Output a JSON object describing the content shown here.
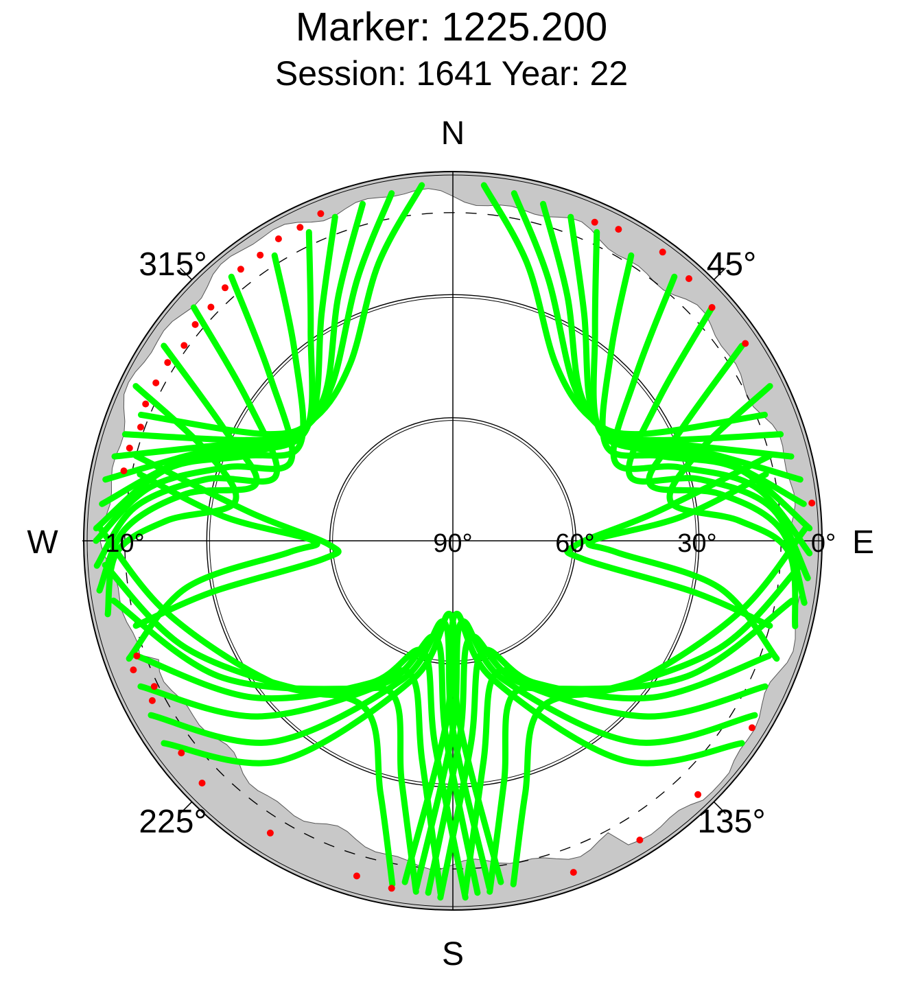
{
  "title": "Marker: 1225.200",
  "subtitle": "Session: 1641 Year: 22",
  "chart_data": {
    "type": "scatter",
    "projection": "polar skyplot (azimuth / elevation)",
    "cardinal_labels": {
      "north": "N",
      "east": "E",
      "south": "S",
      "west": "W"
    },
    "azimuth_labels": [
      "45°",
      "135°",
      "225°",
      "315°"
    ],
    "elevation_labels": [
      "0°",
      "30°",
      "60°",
      "90°",
      "10°"
    ],
    "elevation_rings": [
      0,
      30,
      60
    ],
    "elevation_mask_dashed": 10,
    "obstruction_mask": "grey band near horizon",
    "colors": {
      "tracks": "#00ff00",
      "low_elevation_points": "#ff0000",
      "mask": "#c8c8c8",
      "axes": "#000000"
    },
    "series": [
      {
        "name": "satellite tracks",
        "color": "#00ff00",
        "tracks": [
          {
            "az": [
              355,
              345,
              330,
              312,
              300,
              292
            ],
            "el": [
              3,
              20,
              40,
              45,
              38,
              8
            ]
          },
          {
            "az": [
              350,
              340,
              322,
              305,
              296,
              288
            ],
            "el": [
              4,
              22,
              42,
              44,
              34,
              6
            ]
          },
          {
            "az": [
              345,
              335,
              318,
              300,
              293,
              284
            ],
            "el": [
              5,
              24,
              43,
              42,
              30,
              5
            ]
          },
          {
            "az": [
              340,
              330,
              312,
              298,
              290,
              280
            ],
            "el": [
              6,
              26,
              44,
              40,
              26,
              4
            ]
          },
          {
            "az": [
              335,
              326,
              308,
              295,
              287,
              276
            ],
            "el": [
              7,
              28,
              45,
              38,
              22,
              4
            ]
          },
          {
            "az": [
              328,
              320,
              302,
              292,
              284,
              272
            ],
            "el": [
              8,
              30,
              46,
              35,
              18,
              3
            ]
          },
          {
            "az": [
              320,
              312,
              296,
              288,
              280,
              270
            ],
            "el": [
              6,
              30,
              46,
              32,
              15,
              3
            ]
          },
          {
            "az": [
              312,
              304,
              290,
              284,
              276,
              266
            ],
            "el": [
              5,
              30,
              44,
              28,
              12,
              3
            ]
          },
          {
            "az": [
              304,
              296,
              286,
              280,
              272,
              262
            ],
            "el": [
              5,
              28,
              40,
              24,
              10,
              3
            ]
          },
          {
            "az": [
              296,
              290,
              280,
              274,
              268,
              258
            ],
            "el": [
              4,
              26,
              36,
              20,
              8,
              4
            ]
          },
          {
            "az": [
              5,
              15,
              30,
              48,
              60,
              68
            ],
            "el": [
              3,
              20,
              40,
              45,
              38,
              8
            ]
          },
          {
            "az": [
              10,
              20,
              38,
              55,
              64,
              72
            ],
            "el": [
              4,
              22,
              42,
              44,
              34,
              6
            ]
          },
          {
            "az": [
              15,
              25,
              42,
              60,
              67,
              76
            ],
            "el": [
              5,
              24,
              43,
              42,
              30,
              5
            ]
          },
          {
            "az": [
              20,
              30,
              48,
              62,
              70,
              80
            ],
            "el": [
              6,
              26,
              44,
              40,
              26,
              4
            ]
          },
          {
            "az": [
              25,
              34,
              52,
              65,
              73,
              84
            ],
            "el": [
              7,
              28,
              45,
              38,
              22,
              4
            ]
          },
          {
            "az": [
              32,
              40,
              58,
              68,
              76,
              88
            ],
            "el": [
              8,
              30,
              46,
              35,
              18,
              3
            ]
          },
          {
            "az": [
              40,
              48,
              64,
              72,
              80,
              92
            ],
            "el": [
              6,
              30,
              46,
              32,
              15,
              3
            ]
          },
          {
            "az": [
              48,
              56,
              70,
              76,
              84,
              96
            ],
            "el": [
              5,
              30,
              44,
              28,
              12,
              3
            ]
          },
          {
            "az": [
              56,
              64,
              74,
              80,
              88,
              100
            ],
            "el": [
              5,
              28,
              40,
              24,
              10,
              3
            ]
          },
          {
            "az": [
              64,
              70,
              80,
              86,
              92,
              104
            ],
            "el": [
              4,
              26,
              36,
              20,
              8,
              4
            ]
          },
          {
            "az": [
              250,
              232,
              210,
              195,
              185,
              178
            ],
            "el": [
              8,
              28,
              50,
              62,
              40,
              3
            ]
          },
          {
            "az": [
              245,
              228,
              205,
              190,
              182,
              176
            ],
            "el": [
              6,
              26,
              52,
              66,
              42,
              4
            ]
          },
          {
            "az": [
              240,
              222,
              200,
              186,
              180,
              174
            ],
            "el": [
              5,
              24,
              54,
              70,
              44,
              5
            ]
          },
          {
            "az": [
              235,
              218,
              196,
              182,
              178,
              172
            ],
            "el": [
              4,
              22,
              55,
              72,
              46,
              6
            ]
          },
          {
            "az": [
              260,
              240,
              215,
              198,
              188,
              182
            ],
            "el": [
              6,
              24,
              46,
              56,
              36,
              4
            ]
          },
          {
            "az": [
              266,
              248,
              222,
              202,
              192,
              186
            ],
            "el": [
              5,
              20,
              40,
              50,
              30,
              4
            ]
          },
          {
            "az": [
              272,
              256,
              232,
              208,
              196,
              190
            ],
            "el": [
              4,
              18,
              34,
              44,
              26,
              5
            ]
          },
          {
            "az": [
              110,
              128,
              150,
              165,
              175,
              182
            ],
            "el": [
              8,
              28,
              50,
              62,
              40,
              3
            ]
          },
          {
            "az": [
              115,
              132,
              155,
              170,
              178,
              184
            ],
            "el": [
              6,
              26,
              52,
              66,
              42,
              4
            ]
          },
          {
            "az": [
              120,
              138,
              160,
              174,
              180,
              186
            ],
            "el": [
              5,
              24,
              54,
              70,
              44,
              5
            ]
          },
          {
            "az": [
              125,
              142,
              164,
              178,
              182,
              188
            ],
            "el": [
              4,
              22,
              55,
              72,
              46,
              6
            ]
          },
          {
            "az": [
              100,
              120,
              145,
              162,
              172,
              178
            ],
            "el": [
              6,
              24,
              46,
              56,
              36,
              4
            ]
          },
          {
            "az": [
              94,
              112,
              138,
              158,
              168,
              174
            ],
            "el": [
              5,
              20,
              40,
              50,
              30,
              4
            ]
          },
          {
            "az": [
              88,
              104,
              128,
              152,
              164,
              170
            ],
            "el": [
              4,
              18,
              34,
              44,
              26,
              5
            ]
          },
          {
            "az": [
              285,
              278,
              268,
              262,
              258,
              255
            ],
            "el": [
              10,
              40,
              60,
              58,
              30,
              10
            ]
          },
          {
            "az": [
              75,
              82,
              92,
              98,
              102,
              105
            ],
            "el": [
              10,
              40,
              60,
              58,
              30,
              10
            ]
          },
          {
            "az": [
              282,
              276,
              270,
              266,
              260,
              250
            ],
            "el": [
              12,
              34,
              56,
              50,
              24,
              6
            ]
          },
          {
            "az": [
              78,
              84,
              90,
              94,
              100,
              110
            ],
            "el": [
              12,
              34,
              56,
              50,
              24,
              6
            ]
          }
        ]
      },
      {
        "name": "low elevation observations",
        "color": "#ff0000",
        "points": [
          {
            "az": 338,
            "el": 4
          },
          {
            "az": 334,
            "el": 5
          },
          {
            "az": 330,
            "el": 5
          },
          {
            "az": 326,
            "el": 6
          },
          {
            "az": 322,
            "el": 6
          },
          {
            "az": 318,
            "el": 7
          },
          {
            "az": 314,
            "el": 8
          },
          {
            "az": 310,
            "el": 8
          },
          {
            "az": 306,
            "el": 9
          },
          {
            "az": 302,
            "el": 8
          },
          {
            "az": 298,
            "el": 8
          },
          {
            "az": 294,
            "el": 8
          },
          {
            "az": 290,
            "el": 9
          },
          {
            "az": 286,
            "el": 8
          },
          {
            "az": 282,
            "el": 8
          },
          {
            "az": 250,
            "el": 8
          },
          {
            "az": 248,
            "el": 6
          },
          {
            "az": 244,
            "el": 9
          },
          {
            "az": 242,
            "el": 7
          },
          {
            "az": 232,
            "el": 6
          },
          {
            "az": 226,
            "el": 5
          },
          {
            "az": 212,
            "el": 6
          },
          {
            "az": 196,
            "el": 5
          },
          {
            "az": 190,
            "el": 4
          },
          {
            "az": 24,
            "el": 5
          },
          {
            "az": 28,
            "el": 4
          },
          {
            "az": 36,
            "el": 3
          },
          {
            "az": 42,
            "el": 4
          },
          {
            "az": 48,
            "el": 5
          },
          {
            "az": 56,
            "el": 4
          },
          {
            "az": 84,
            "el": 2
          },
          {
            "az": 122,
            "el": 4
          },
          {
            "az": 136,
            "el": 4
          },
          {
            "az": 148,
            "el": 4
          },
          {
            "az": 160,
            "el": 4
          }
        ]
      }
    ]
  }
}
